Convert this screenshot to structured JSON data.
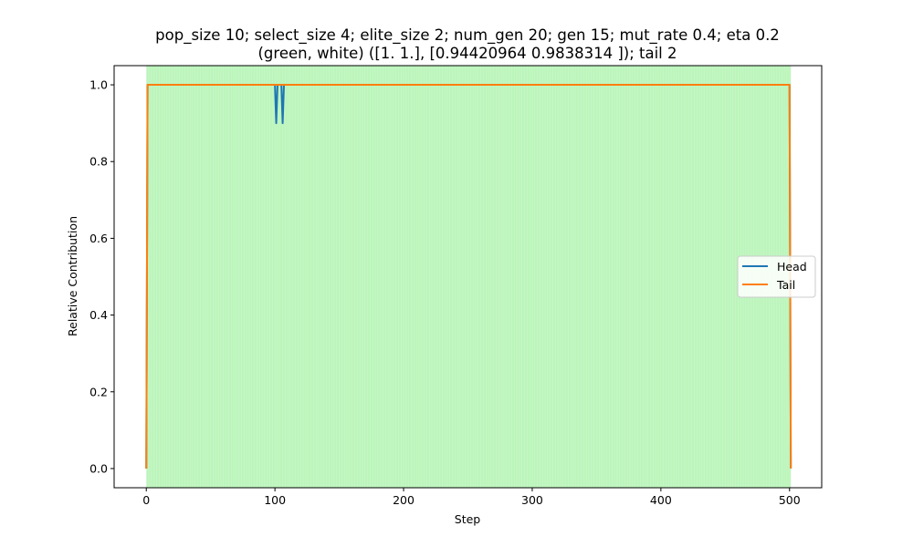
{
  "chart_data": {
    "type": "line",
    "title_line1": "pop_size 10; select_size 4; elite_size 2; num_gen 20; gen 15; mut_rate 0.4; eta 0.2",
    "title_line2": "(green, white) ([1. 1.], [0.94420964 0.9838314 ]); tail 2",
    "xlabel": "Step",
    "ylabel": "Relative Contribution",
    "xlim": [
      -25,
      525
    ],
    "ylim": [
      -0.05,
      1.05
    ],
    "xticks": [
      0,
      100,
      200,
      300,
      400,
      500
    ],
    "yticks": [
      0.0,
      0.2,
      0.4,
      0.6,
      0.8,
      1.0
    ],
    "xtick_labels": [
      "0",
      "100",
      "200",
      "300",
      "400",
      "500"
    ],
    "ytick_labels": [
      "0.0",
      "0.2",
      "0.4",
      "0.6",
      "0.8",
      "1.0"
    ],
    "background_band": {
      "x_range": [
        0,
        501
      ],
      "color": "#90ee90"
    },
    "series": [
      {
        "name": "Head",
        "color": "#1f77b4",
        "x": [
          0,
          1,
          2,
          100,
          101,
          102,
          105,
          106,
          107,
          500,
          501
        ],
        "y": [
          0,
          1,
          1,
          1,
          0.9,
          1,
          1,
          0.9,
          1,
          1,
          0
        ]
      },
      {
        "name": "Tail",
        "color": "#ff7f0e",
        "x": [
          0,
          1,
          2,
          500,
          501
        ],
        "y": [
          0,
          1,
          1,
          1,
          0
        ]
      }
    ],
    "legend": {
      "position": "center-right",
      "entries": [
        "Head",
        "Tail"
      ]
    },
    "grid": false
  }
}
